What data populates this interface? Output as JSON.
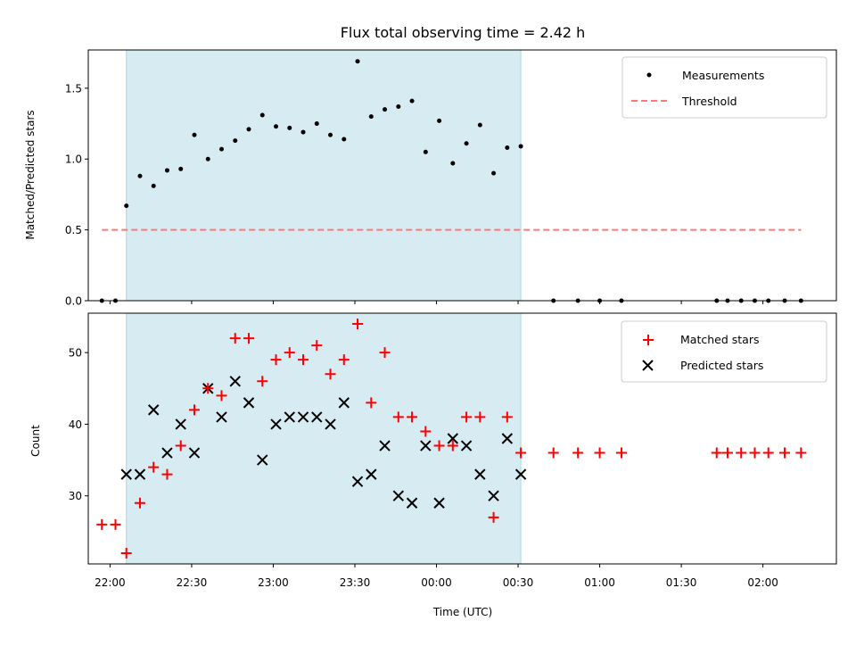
{
  "chart_data": [
    {
      "type": "scatter",
      "title": "Flux total observing time = 2.42 h",
      "xlabel": "",
      "ylabel": "Matched/Predicted stars",
      "x_unit": "time (UTC)",
      "xlim": [
        "21:52",
        "02:27"
      ],
      "ylim": [
        0,
        1.77
      ],
      "yticks": [
        "0.0",
        "0.5",
        "1.0",
        "1.5"
      ],
      "highlight_span": [
        "22:06",
        "00:31"
      ],
      "highlight_color": "#ADD8E6",
      "legend_position": "top-right",
      "series": [
        {
          "name": "Measurements",
          "marker": "dot",
          "color": "#000000",
          "x": [
            "21:57",
            "22:02",
            "22:06",
            "22:11",
            "22:16",
            "22:21",
            "22:26",
            "22:31",
            "22:36",
            "22:41",
            "22:46",
            "22:51",
            "22:56",
            "23:01",
            "23:06",
            "23:11",
            "23:16",
            "23:21",
            "23:26",
            "23:31",
            "23:36",
            "23:41",
            "23:46",
            "23:51",
            "23:56",
            "00:01",
            "00:06",
            "00:11",
            "00:16",
            "00:21",
            "00:26",
            "00:31",
            "00:43",
            "00:52",
            "01:00",
            "01:08",
            "01:43",
            "01:47",
            "01:52",
            "01:57",
            "02:02",
            "02:08",
            "02:14"
          ],
          "y": [
            0,
            0,
            0.67,
            0.88,
            0.81,
            0.92,
            0.93,
            1.17,
            1.0,
            1.07,
            1.13,
            1.21,
            1.31,
            1.23,
            1.22,
            1.19,
            1.25,
            1.17,
            1.14,
            1.69,
            1.3,
            1.35,
            1.37,
            1.41,
            1.05,
            1.27,
            0.97,
            1.11,
            1.24,
            0.9,
            1.08,
            1.09,
            0,
            0,
            0,
            0,
            0,
            0,
            0,
            0,
            0,
            0,
            0
          ]
        },
        {
          "name": "Threshold",
          "style": "dashed",
          "color": "#FF7777",
          "x": [
            "21:57",
            "02:14"
          ],
          "y": [
            0.5,
            0.5
          ]
        }
      ]
    },
    {
      "type": "scatter",
      "title": "",
      "xlabel": "Time (UTC)",
      "ylabel": "Count",
      "xlim": [
        "21:52",
        "02:27"
      ],
      "ylim": [
        20.5,
        55.5
      ],
      "xticks": [
        "22:00",
        "22:30",
        "23:00",
        "23:30",
        "00:00",
        "00:30",
        "01:00",
        "01:30",
        "02:00"
      ],
      "yticks": [
        "30",
        "40",
        "50"
      ],
      "highlight_span": [
        "22:06",
        "00:31"
      ],
      "legend_position": "top-right",
      "series": [
        {
          "name": "Matched stars",
          "marker": "plus",
          "color": "#FF0000",
          "x": [
            "21:57",
            "22:02",
            "22:06",
            "22:11",
            "22:16",
            "22:21",
            "22:26",
            "22:31",
            "22:36",
            "22:41",
            "22:46",
            "22:51",
            "22:56",
            "23:01",
            "23:06",
            "23:11",
            "23:16",
            "23:21",
            "23:26",
            "23:31",
            "23:36",
            "23:41",
            "23:46",
            "23:51",
            "23:56",
            "00:01",
            "00:06",
            "00:11",
            "00:16",
            "00:21",
            "00:26",
            "00:31",
            "00:43",
            "00:52",
            "01:00",
            "01:08",
            "01:43",
            "01:47",
            "01:52",
            "01:57",
            "02:02",
            "02:08",
            "02:14"
          ],
          "y": [
            26,
            26,
            22,
            29,
            34,
            33,
            37,
            42,
            45,
            44,
            52,
            52,
            46,
            49,
            50,
            49,
            51,
            47,
            49,
            54,
            43,
            50,
            41,
            41,
            39,
            37,
            37,
            41,
            41,
            27,
            41,
            36,
            36,
            36,
            36,
            36,
            36,
            36,
            36,
            36,
            36,
            36,
            36
          ]
        },
        {
          "name": "Predicted stars",
          "marker": "x",
          "color": "#000000",
          "x": [
            "22:06",
            "22:11",
            "22:16",
            "22:21",
            "22:26",
            "22:31",
            "22:36",
            "22:41",
            "22:46",
            "22:51",
            "22:56",
            "23:01",
            "23:06",
            "23:11",
            "23:16",
            "23:21",
            "23:26",
            "23:31",
            "23:36",
            "23:41",
            "23:46",
            "23:51",
            "23:56",
            "00:01",
            "00:06",
            "00:11",
            "00:16",
            "00:21",
            "00:26",
            "00:31"
          ],
          "y": [
            33,
            33,
            42,
            36,
            40,
            36,
            45,
            41,
            46,
            43,
            35,
            40,
            41,
            41,
            41,
            40,
            43,
            32,
            33,
            37,
            30,
            29,
            37,
            29,
            38,
            37,
            33,
            30,
            38,
            33
          ]
        }
      ]
    }
  ]
}
